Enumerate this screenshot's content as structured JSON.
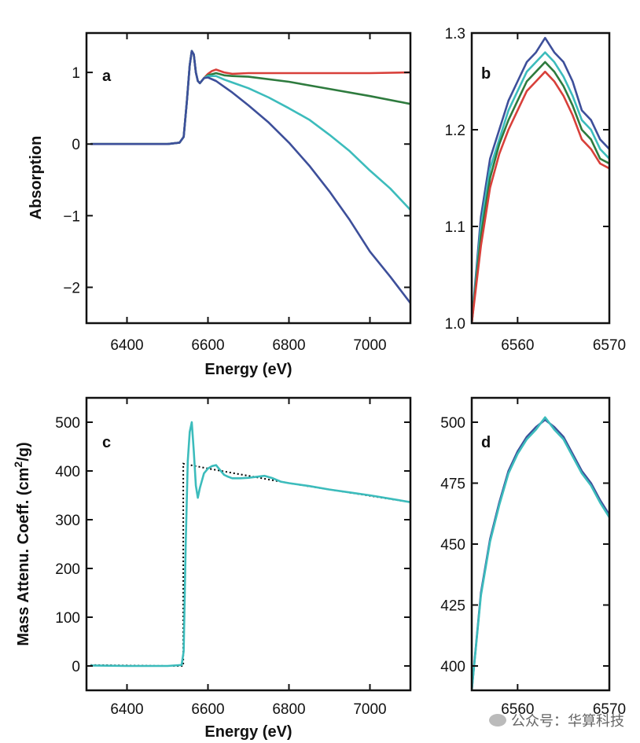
{
  "watermark": "公众号：华算科技",
  "chart_data": [
    {
      "id": "a",
      "panel_label": "a",
      "type": "line",
      "xlabel": "Energy (eV)",
      "ylabel": "Absorption",
      "xlim": [
        6300,
        7100
      ],
      "ylim": [
        -2.5,
        1.55
      ],
      "xticks": [
        6400,
        6600,
        6800,
        7000
      ],
      "yticks": [
        -2,
        -1,
        0,
        1
      ],
      "ytick_labels": [
        "−2",
        "−1",
        "0",
        "1"
      ],
      "series": [
        {
          "name": "red",
          "color": "#d8403a",
          "x": [
            6310,
            6400,
            6500,
            6530,
            6540,
            6548,
            6555,
            6560,
            6565,
            6570,
            6575,
            6580,
            6590,
            6600,
            6610,
            6620,
            6640,
            6660,
            6700,
            6800,
            6900,
            7000,
            7100
          ],
          "y": [
            0,
            0,
            0,
            0.02,
            0.1,
            0.6,
            1.1,
            1.3,
            1.25,
            1.0,
            0.88,
            0.85,
            0.92,
            0.98,
            1.02,
            1.04,
            1.0,
            0.98,
            0.99,
            0.99,
            0.99,
            0.99,
            1.0
          ]
        },
        {
          "name": "green",
          "color": "#2e7b3e",
          "x": [
            6310,
            6400,
            6500,
            6530,
            6540,
            6548,
            6555,
            6560,
            6565,
            6570,
            6575,
            6580,
            6590,
            6600,
            6620,
            6640,
            6660,
            6700,
            6800,
            6900,
            7000,
            7100
          ],
          "y": [
            0,
            0,
            0,
            0.02,
            0.1,
            0.6,
            1.1,
            1.3,
            1.25,
            1.0,
            0.88,
            0.85,
            0.92,
            0.96,
            0.99,
            0.96,
            0.95,
            0.94,
            0.87,
            0.77,
            0.67,
            0.56
          ]
        },
        {
          "name": "cyan",
          "color": "#3cbcbc",
          "x": [
            6310,
            6400,
            6500,
            6530,
            6540,
            6548,
            6555,
            6560,
            6565,
            6570,
            6575,
            6580,
            6590,
            6600,
            6620,
            6640,
            6660,
            6700,
            6750,
            6800,
            6850,
            6900,
            6950,
            7000,
            7050,
            7100
          ],
          "y": [
            0,
            0,
            0,
            0.02,
            0.1,
            0.6,
            1.1,
            1.3,
            1.25,
            1.0,
            0.88,
            0.85,
            0.92,
            0.95,
            0.95,
            0.9,
            0.86,
            0.78,
            0.65,
            0.5,
            0.34,
            0.13,
            -0.1,
            -0.37,
            -0.62,
            -0.92
          ]
        },
        {
          "name": "navy",
          "color": "#3d4f9a",
          "x": [
            6310,
            6400,
            6500,
            6530,
            6540,
            6548,
            6555,
            6560,
            6565,
            6570,
            6575,
            6580,
            6590,
            6600,
            6620,
            6640,
            6660,
            6700,
            6750,
            6800,
            6850,
            6900,
            6950,
            7000,
            7050,
            7100
          ],
          "y": [
            0,
            0,
            0,
            0.02,
            0.1,
            0.6,
            1.1,
            1.3,
            1.25,
            1.0,
            0.88,
            0.85,
            0.92,
            0.93,
            0.88,
            0.8,
            0.72,
            0.54,
            0.3,
            0.02,
            -0.3,
            -0.66,
            -1.06,
            -1.5,
            -1.85,
            -2.22
          ]
        }
      ]
    },
    {
      "id": "b",
      "panel_label": "b",
      "type": "line",
      "xlabel": "",
      "ylabel": "",
      "xlim": [
        6555,
        6570
      ],
      "ylim": [
        1.0,
        1.3
      ],
      "xticks": [
        6560,
        6570
      ],
      "yticks": [
        1.0,
        1.1,
        1.2,
        1.3
      ],
      "ytick_labels": [
        "1.0",
        "1.1",
        "1.2",
        "1.3"
      ],
      "series": [
        {
          "name": "navy",
          "color": "#3d4f9a",
          "x": [
            6555,
            6556,
            6557,
            6558,
            6559,
            6560,
            6561,
            6562,
            6563,
            6564,
            6565,
            6566,
            6567,
            6568,
            6569,
            6570
          ],
          "y": [
            1.0,
            1.11,
            1.17,
            1.2,
            1.23,
            1.25,
            1.27,
            1.28,
            1.295,
            1.28,
            1.27,
            1.25,
            1.22,
            1.21,
            1.19,
            1.18
          ]
        },
        {
          "name": "cyan",
          "color": "#3cbcbc",
          "x": [
            6555,
            6556,
            6557,
            6558,
            6559,
            6560,
            6561,
            6562,
            6563,
            6564,
            6565,
            6566,
            6567,
            6568,
            6569,
            6570
          ],
          "y": [
            1.0,
            1.1,
            1.16,
            1.19,
            1.22,
            1.24,
            1.26,
            1.27,
            1.28,
            1.27,
            1.255,
            1.235,
            1.21,
            1.2,
            1.18,
            1.17
          ]
        },
        {
          "name": "green",
          "color": "#2e7b3e",
          "x": [
            6555,
            6556,
            6557,
            6558,
            6559,
            6560,
            6561,
            6562,
            6563,
            6564,
            6565,
            6566,
            6567,
            6568,
            6569,
            6570
          ],
          "y": [
            1.0,
            1.09,
            1.15,
            1.185,
            1.21,
            1.23,
            1.25,
            1.26,
            1.27,
            1.26,
            1.245,
            1.225,
            1.2,
            1.19,
            1.17,
            1.165
          ]
        },
        {
          "name": "red",
          "color": "#d8403a",
          "x": [
            6555,
            6556,
            6557,
            6558,
            6559,
            6560,
            6561,
            6562,
            6563,
            6564,
            6565,
            6566,
            6567,
            6568,
            6569,
            6570
          ],
          "y": [
            1.0,
            1.08,
            1.14,
            1.175,
            1.2,
            1.22,
            1.24,
            1.25,
            1.26,
            1.25,
            1.235,
            1.215,
            1.19,
            1.18,
            1.165,
            1.16
          ]
        }
      ]
    },
    {
      "id": "c",
      "panel_label": "c",
      "type": "line",
      "xlabel": "Energy (eV)",
      "ylabel_main": "Mass Attenu. Coeff. (cm",
      "ylabel_sup": "2",
      "ylabel_tail": "/g)",
      "xlim": [
        6300,
        7100
      ],
      "ylim": [
        -50,
        550
      ],
      "xticks": [
        6400,
        6600,
        6800,
        7000
      ],
      "yticks": [
        0,
        100,
        200,
        300,
        400,
        500
      ],
      "ytick_labels": [
        "0",
        "100",
        "200",
        "300",
        "400",
        "500"
      ],
      "reference": {
        "name": "tabulated",
        "style": "dotted",
        "color": "#000000",
        "x": [
          6310,
          6400,
          6500,
          6539,
          6539,
          6600,
          6700,
          6800,
          6900,
          7000,
          7100
        ],
        "y": [
          2,
          1,
          0,
          0,
          415,
          405,
          390,
          375,
          362,
          349,
          336
        ]
      },
      "series": [
        {
          "name": "cyan",
          "color": "#3cbcbc",
          "x": [
            6310,
            6400,
            6500,
            6535,
            6540,
            6545,
            6550,
            6555,
            6560,
            6565,
            6570,
            6575,
            6580,
            6590,
            6600,
            6610,
            6620,
            6630,
            6640,
            6650,
            6660,
            6680,
            6700,
            6720,
            6740,
            6760,
            6780,
            6800,
            6850,
            6900,
            6950,
            7000,
            7050,
            7100
          ],
          "y": [
            1,
            0,
            0,
            2,
            30,
            250,
            420,
            480,
            500,
            440,
            370,
            345,
            365,
            395,
            405,
            410,
            412,
            402,
            392,
            388,
            385,
            385,
            386,
            388,
            390,
            385,
            378,
            375,
            369,
            362,
            356,
            350,
            343,
            336
          ]
        }
      ]
    },
    {
      "id": "d",
      "panel_label": "d",
      "type": "line",
      "xlabel": "",
      "ylabel": "",
      "xlim": [
        6555,
        6570
      ],
      "ylim": [
        390,
        510
      ],
      "xticks": [
        6560,
        6570
      ],
      "xtick_labels": [
        "6560",
        "6570"
      ],
      "yticks": [
        400,
        425,
        450,
        475,
        500
      ],
      "ytick_labels": [
        "400",
        "425",
        "450",
        "475",
        "500"
      ],
      "series": [
        {
          "name": "navy",
          "color": "#3d4f9a",
          "x": [
            6555,
            6556,
            6557,
            6558,
            6559,
            6560,
            6561,
            6562,
            6563,
            6564,
            6565,
            6566,
            6567,
            6568,
            6569,
            6570
          ],
          "y": [
            390,
            430,
            452,
            467,
            480,
            488,
            494,
            498,
            501,
            498,
            494,
            487,
            480,
            475,
            468,
            462
          ]
        },
        {
          "name": "cyan",
          "color": "#3cbcbc",
          "x": [
            6555,
            6556,
            6557,
            6558,
            6559,
            6560,
            6561,
            6562,
            6563,
            6564,
            6565,
            6566,
            6567,
            6568,
            6569,
            6570
          ],
          "y": [
            390,
            429,
            451,
            466,
            479,
            487,
            493,
            497,
            502,
            497,
            493,
            486,
            479,
            474,
            467,
            461
          ]
        }
      ]
    }
  ]
}
